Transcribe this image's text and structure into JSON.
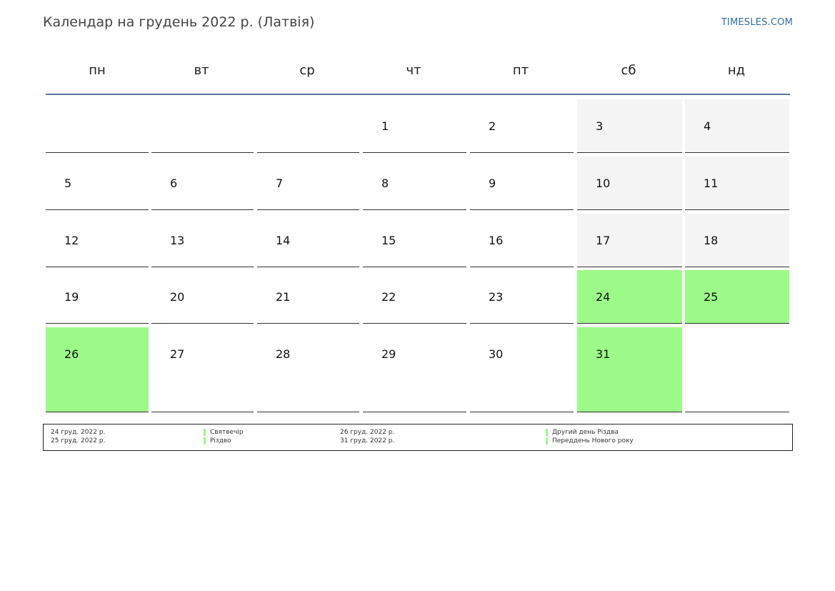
{
  "header": {
    "title": "Календар на грудень 2022 р. (Латвія)",
    "site": "TIMESLES.COM"
  },
  "weekdays": [
    "пн",
    "вт",
    "ср",
    "чт",
    "пт",
    "сб",
    "нд"
  ],
  "weeks": [
    [
      "",
      "",
      "",
      "1",
      "2",
      "3",
      "4"
    ],
    [
      "5",
      "6",
      "7",
      "8",
      "9",
      "10",
      "11"
    ],
    [
      "12",
      "13",
      "14",
      "15",
      "16",
      "17",
      "18"
    ],
    [
      "19",
      "20",
      "21",
      "22",
      "23",
      "24",
      "25"
    ],
    [
      "26",
      "27",
      "28",
      "29",
      "30",
      "31",
      ""
    ]
  ],
  "holiday_days": [
    "24",
    "25",
    "26",
    "31"
  ],
  "colors": {
    "holiday": "#9cfa88",
    "weekend": "#f4f4f4",
    "header_rule": "#5a7694",
    "link": "#2e6da4"
  },
  "legend": [
    {
      "date": "24 груд. 2022 р.",
      "name": "Святвечір"
    },
    {
      "date": "25 груд. 2022 р.",
      "name": "Різдво"
    },
    {
      "date": "26 груд. 2022 р.",
      "name": "Другий день Різдва"
    },
    {
      "date": "31 груд. 2022 р.",
      "name": "Переддень Нового року"
    }
  ]
}
